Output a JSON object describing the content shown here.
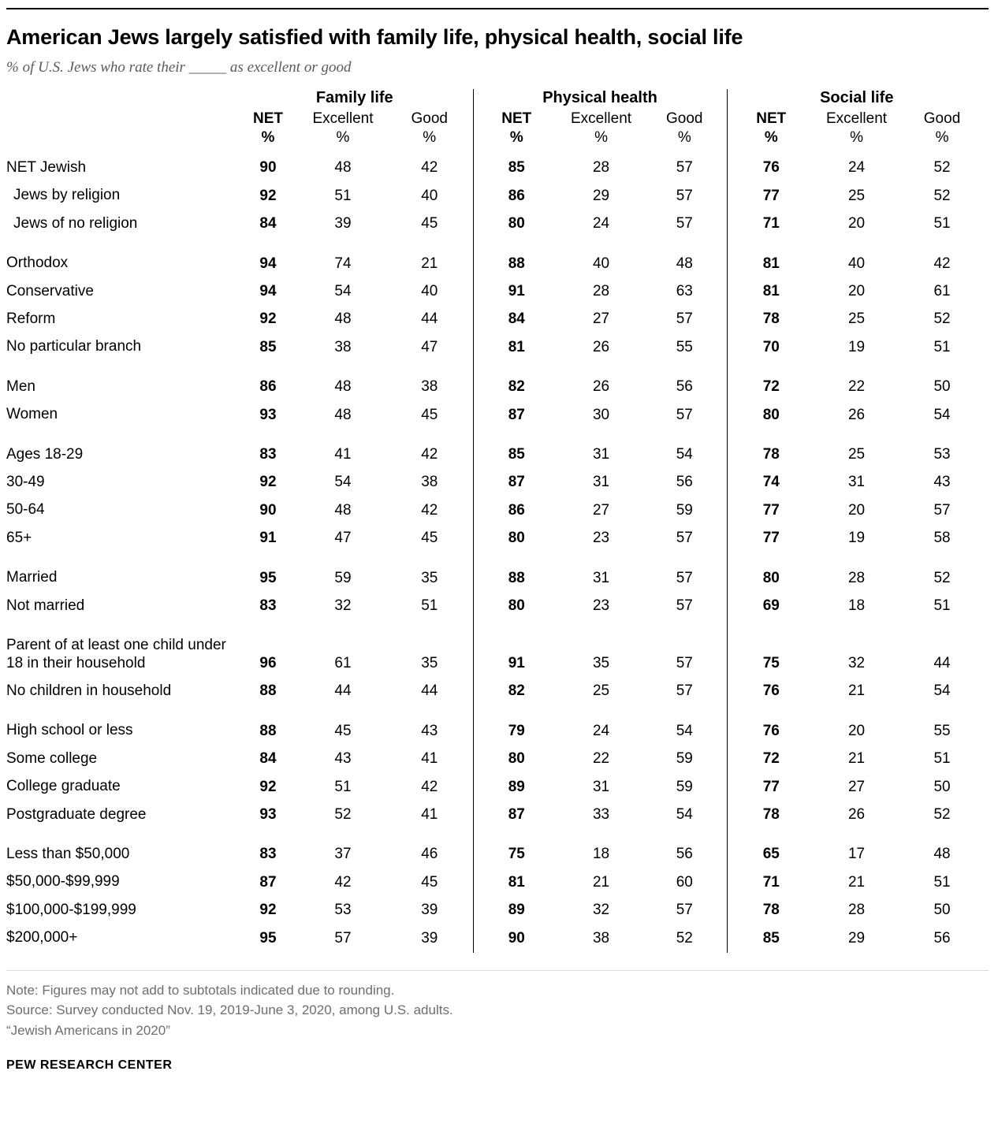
{
  "header": {
    "title": "American Jews largely satisfied with family life, physical health, social life",
    "subtitle": "% of U.S. Jews who rate their _____ as excellent or good"
  },
  "chart_data": {
    "type": "table",
    "title": "American Jews largely satisfied with family life, physical health, social life",
    "column_groups": [
      "Family life",
      "Physical health",
      "Social life"
    ],
    "subcolumns": [
      "NET",
      "Excellent",
      "Good"
    ],
    "unit": "%",
    "row_groups": [
      {
        "rows": [
          {
            "label": "NET Jewish",
            "indent": false,
            "values": [
              90,
              48,
              42,
              85,
              28,
              57,
              76,
              24,
              52
            ]
          },
          {
            "label": "Jews by religion",
            "indent": true,
            "values": [
              92,
              51,
              40,
              86,
              29,
              57,
              77,
              25,
              52
            ]
          },
          {
            "label": "Jews of no religion",
            "indent": true,
            "values": [
              84,
              39,
              45,
              80,
              24,
              57,
              71,
              20,
              51
            ]
          }
        ]
      },
      {
        "rows": [
          {
            "label": "Orthodox",
            "indent": false,
            "values": [
              94,
              74,
              21,
              88,
              40,
              48,
              81,
              40,
              42
            ]
          },
          {
            "label": "Conservative",
            "indent": false,
            "values": [
              94,
              54,
              40,
              91,
              28,
              63,
              81,
              20,
              61
            ]
          },
          {
            "label": "Reform",
            "indent": false,
            "values": [
              92,
              48,
              44,
              84,
              27,
              57,
              78,
              25,
              52
            ]
          },
          {
            "label": "No particular branch",
            "indent": false,
            "values": [
              85,
              38,
              47,
              81,
              26,
              55,
              70,
              19,
              51
            ]
          }
        ]
      },
      {
        "rows": [
          {
            "label": "Men",
            "indent": false,
            "values": [
              86,
              48,
              38,
              82,
              26,
              56,
              72,
              22,
              50
            ]
          },
          {
            "label": "Women",
            "indent": false,
            "values": [
              93,
              48,
              45,
              87,
              30,
              57,
              80,
              26,
              54
            ]
          }
        ]
      },
      {
        "rows": [
          {
            "label": "Ages 18-29",
            "indent": false,
            "values": [
              83,
              41,
              42,
              85,
              31,
              54,
              78,
              25,
              53
            ]
          },
          {
            "label": "30-49",
            "indent": false,
            "values": [
              92,
              54,
              38,
              87,
              31,
              56,
              74,
              31,
              43
            ]
          },
          {
            "label": "50-64",
            "indent": false,
            "values": [
              90,
              48,
              42,
              86,
              27,
              59,
              77,
              20,
              57
            ]
          },
          {
            "label": "65+",
            "indent": false,
            "values": [
              91,
              47,
              45,
              80,
              23,
              57,
              77,
              19,
              58
            ]
          }
        ]
      },
      {
        "rows": [
          {
            "label": "Married",
            "indent": false,
            "values": [
              95,
              59,
              35,
              88,
              31,
              57,
              80,
              28,
              52
            ]
          },
          {
            "label": "Not married",
            "indent": false,
            "values": [
              83,
              32,
              51,
              80,
              23,
              57,
              69,
              18,
              51
            ]
          }
        ]
      },
      {
        "rows": [
          {
            "label": "Parent of at least one child under 18 in their household",
            "indent": false,
            "values": [
              96,
              61,
              35,
              91,
              35,
              57,
              75,
              32,
              44
            ]
          },
          {
            "label": "No children in household",
            "indent": false,
            "values": [
              88,
              44,
              44,
              82,
              25,
              57,
              76,
              21,
              54
            ]
          }
        ]
      },
      {
        "rows": [
          {
            "label": "High school or less",
            "indent": false,
            "values": [
              88,
              45,
              43,
              79,
              24,
              54,
              76,
              20,
              55
            ]
          },
          {
            "label": "Some college",
            "indent": false,
            "values": [
              84,
              43,
              41,
              80,
              22,
              59,
              72,
              21,
              51
            ]
          },
          {
            "label": "College graduate",
            "indent": false,
            "values": [
              92,
              51,
              42,
              89,
              31,
              59,
              77,
              27,
              50
            ]
          },
          {
            "label": "Postgraduate degree",
            "indent": false,
            "values": [
              93,
              52,
              41,
              87,
              33,
              54,
              78,
              26,
              52
            ]
          }
        ]
      },
      {
        "rows": [
          {
            "label": "Less than $50,000",
            "indent": false,
            "values": [
              83,
              37,
              46,
              75,
              18,
              56,
              65,
              17,
              48
            ]
          },
          {
            "label": "$50,000-$99,999",
            "indent": false,
            "values": [
              87,
              42,
              45,
              81,
              21,
              60,
              71,
              21,
              51
            ]
          },
          {
            "label": "$100,000-$199,999",
            "indent": false,
            "values": [
              92,
              53,
              39,
              89,
              32,
              57,
              78,
              28,
              50
            ]
          },
          {
            "label": "$200,000+",
            "indent": false,
            "values": [
              95,
              57,
              39,
              90,
              38,
              52,
              85,
              29,
              56
            ]
          }
        ]
      }
    ]
  },
  "footer": {
    "note": "Note: Figures may not add to subtotals indicated due to rounding.",
    "source": "Source: Survey conducted Nov. 19, 2019-June 3, 2020, among U.S. adults.",
    "citation": "“Jewish Americans in 2020”",
    "brand": "PEW RESEARCH CENTER"
  },
  "colors": {
    "text": "#000000",
    "subtitle_gray": "#5a5a5a",
    "footer_gray": "#6e6e6e",
    "divider": "#000000",
    "bottom_rule": "#d9d9d9"
  }
}
